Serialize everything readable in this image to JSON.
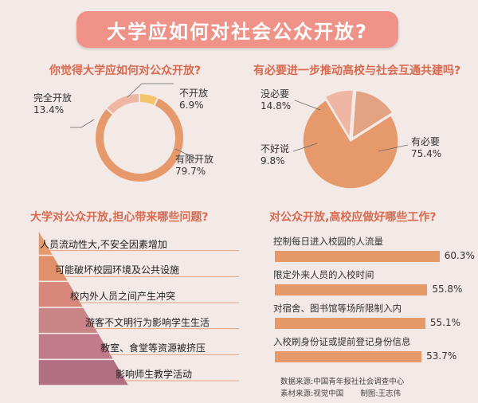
{
  "header": {
    "title": "大学应如何对社会公众开放?"
  },
  "chart_data": [
    {
      "type": "pie",
      "title": "你觉得大学应如何对公众开放?",
      "slices": [
        {
          "label": "不开放",
          "value": 6.9,
          "display": "6.9%",
          "color": "#f4c46b"
        },
        {
          "label": "有限开放",
          "value": 79.7,
          "display": "79.7%",
          "color": "#e69a6c"
        },
        {
          "label": "完全开放",
          "value": 13.4,
          "display": "13.4%",
          "color": "#f0b6a4"
        }
      ]
    },
    {
      "type": "pie",
      "title": "有必要进一步推动高校与社会互通共建吗?",
      "slices": [
        {
          "label": "有必要",
          "value": 75.4,
          "display": "75.4%",
          "color": "#e69a6c"
        },
        {
          "label": "不好说",
          "value": 9.8,
          "display": "9.8%",
          "color": "#f0b6a4"
        },
        {
          "label": "没必要",
          "value": 14.8,
          "display": "14.8%",
          "color": "#e2a382"
        }
      ]
    },
    {
      "type": "bar",
      "title": "对公众开放,高校应做好哪些工作?",
      "categories": [
        "控制每日进入校园的人流量",
        "限定外来人员的入校时间",
        "对宿舍、图书馆等场所限制入内",
        "入校刷身份证或提前登记身份信息"
      ],
      "values": [
        60.3,
        55.8,
        55.1,
        53.7
      ],
      "display": [
        "60.3%",
        "55.8%",
        "55.1%",
        "53.7%"
      ],
      "ylim": [
        0,
        70
      ]
    }
  ],
  "concerns": {
    "title": "大学对公众开放,担心带来哪些问题?",
    "items": [
      "人员流动性大,不安全因素增加",
      "可能破坏校园环境及公共设施",
      "校内外人员之间产生冲突",
      "游客不文明行为影响学生生活",
      "教室、食堂等资源被挤压",
      "影响师生教学活动"
    ],
    "colors": [
      "#e69a6c",
      "#e0906a",
      "#d8877a",
      "#c98585",
      "#c27b8b",
      "#b07082"
    ]
  },
  "footer": {
    "source": "数据来源:中国青年报社社会调查中心",
    "material": "素材来源:视觉中国",
    "maker": "制图:王志伟"
  }
}
